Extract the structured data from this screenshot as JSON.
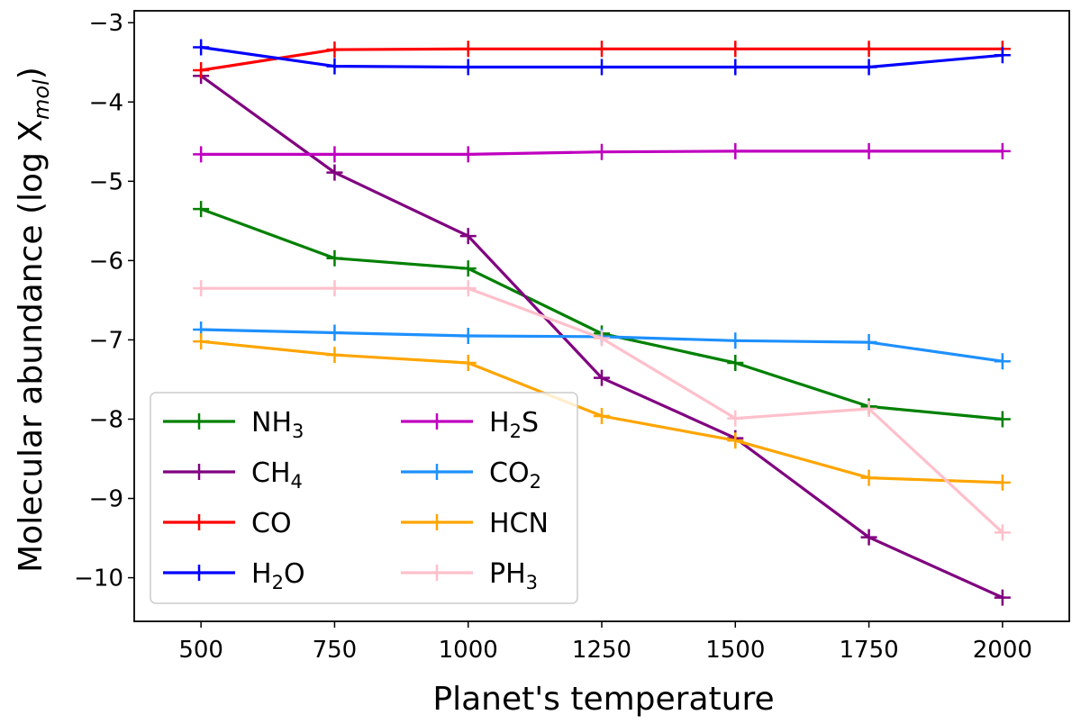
{
  "chart_data": {
    "type": "line",
    "title": "",
    "xlabel": "Planet's temperature",
    "ylabel": {
      "main": "Molecular abundance (log X",
      "sub": "mol",
      "close": ")"
    },
    "x": [
      500,
      750,
      1000,
      1250,
      1500,
      1750,
      2000
    ],
    "xlim": [
      375,
      2125
    ],
    "ylim": [
      -10.55,
      -2.85
    ],
    "xticks": [
      500,
      750,
      1000,
      1250,
      1500,
      1750,
      2000
    ],
    "xtick_labels": [
      "500",
      "750",
      "1000",
      "1250",
      "1500",
      "1750",
      "2000"
    ],
    "yticks": [
      -3,
      -4,
      -5,
      -6,
      -7,
      -8,
      -9,
      -10
    ],
    "ytick_labels": [
      "−3",
      "−4",
      "−5",
      "−6",
      "−7",
      "−8",
      "−9",
      "−10"
    ],
    "marker": "+",
    "legend": {
      "placement": "lower-left",
      "columns": 2
    },
    "series": [
      {
        "name": "NH3",
        "label_main": "NH",
        "label_sub": "3",
        "label_tail": "",
        "color": "#008000",
        "values": [
          -5.35,
          -5.97,
          -6.1,
          -6.92,
          -7.29,
          -7.84,
          -8.0
        ]
      },
      {
        "name": "CH4",
        "label_main": "CH",
        "label_sub": "4",
        "label_tail": "",
        "color": "#800080",
        "values": [
          -3.67,
          -4.89,
          -5.69,
          -7.48,
          -8.24,
          -9.49,
          -10.25
        ]
      },
      {
        "name": "CO",
        "label_main": "CO",
        "label_sub": "",
        "label_tail": "",
        "color": "#ff0000",
        "values": [
          -3.6,
          -3.34,
          -3.33,
          -3.33,
          -3.33,
          -3.33,
          -3.33
        ]
      },
      {
        "name": "H2O",
        "label_main": "H",
        "label_sub": "2",
        "label_tail": "O",
        "color": "#0000ff",
        "values": [
          -3.31,
          -3.55,
          -3.56,
          -3.56,
          -3.56,
          -3.56,
          -3.41
        ]
      },
      {
        "name": "H2S",
        "label_main": "H",
        "label_sub": "2",
        "label_tail": "S",
        "color": "#bf00bf",
        "values": [
          -4.66,
          -4.66,
          -4.66,
          -4.63,
          -4.62,
          -4.62,
          -4.62
        ]
      },
      {
        "name": "CO2",
        "label_main": "CO",
        "label_sub": "2",
        "label_tail": "",
        "color": "#1e90ff",
        "values": [
          -6.87,
          -6.91,
          -6.95,
          -6.96,
          -7.01,
          -7.03,
          -7.27
        ]
      },
      {
        "name": "HCN",
        "label_main": "HCN",
        "label_sub": "",
        "label_tail": "",
        "color": "#ffa500",
        "values": [
          -7.02,
          -7.19,
          -7.29,
          -7.96,
          -8.27,
          -8.74,
          -8.8
        ]
      },
      {
        "name": "PH3",
        "label_main": "PH",
        "label_sub": "3",
        "label_tail": "",
        "color": "#ffc0cb",
        "values": [
          -6.35,
          -6.35,
          -6.35,
          -6.98,
          -7.99,
          -7.87,
          -9.43
        ]
      }
    ]
  }
}
